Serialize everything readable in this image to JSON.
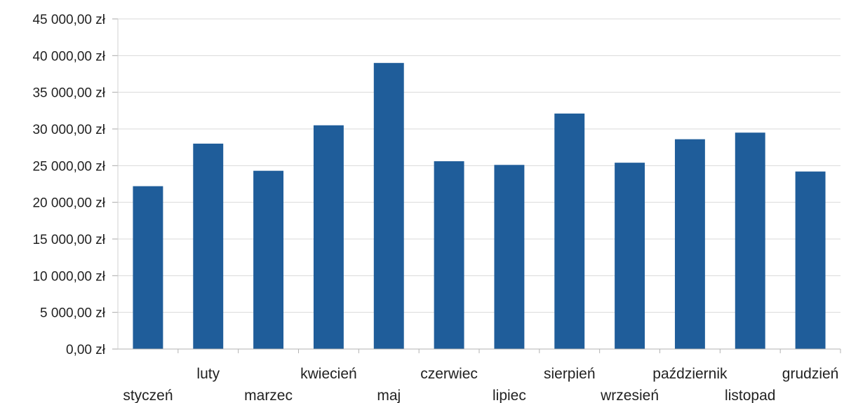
{
  "chart_data": {
    "type": "bar",
    "title": "",
    "xlabel": "",
    "ylabel": "",
    "ylim": [
      0,
      45000
    ],
    "grid": true,
    "legend": "none",
    "bar_color": "#1f5d9a",
    "grid_color": "#d9d9d9",
    "y_ticks": [
      0,
      5000,
      10000,
      15000,
      20000,
      25000,
      30000,
      35000,
      40000,
      45000
    ],
    "y_tick_labels": [
      "0,00 zł",
      "5 000,00 zł",
      "10 000,00 zł",
      "15 000,00 zł",
      "20 000,00 zł",
      "25 000,00 zł",
      "30 000,00 zł",
      "35 000,00 zł",
      "40 000,00 zł",
      "45 000,00 zł"
    ],
    "categories": [
      "styczeń",
      "luty",
      "marzec",
      "kwiecień",
      "maj",
      "czerwiec",
      "lipiec",
      "sierpień",
      "wrzesień",
      "październik",
      "listopad",
      "grudzień"
    ],
    "values": [
      22200,
      28000,
      24300,
      30500,
      39000,
      25600,
      25100,
      32100,
      25400,
      28600,
      29500,
      24200
    ]
  }
}
